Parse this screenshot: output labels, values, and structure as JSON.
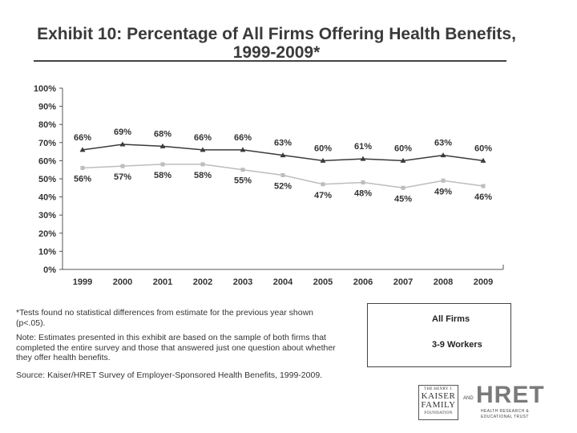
{
  "header": {
    "title_line1": "Exhibit 10: Percentage of All Firms Offering Health Benefits,",
    "title_line2": "1999-2009*"
  },
  "colors": {
    "all_firms": "#3a3a3a",
    "workers_3_9": "#bdbdbd",
    "axis": "#555555"
  },
  "chart_data": {
    "type": "line",
    "title": "Exhibit 10: Percentage of All Firms Offering Health Benefits, 1999-2009*",
    "xlabel": "",
    "ylabel": "",
    "categories": [
      "1999",
      "2000",
      "2001",
      "2002",
      "2003",
      "2004",
      "2005",
      "2006",
      "2007",
      "2008",
      "2009"
    ],
    "ylim": [
      0,
      100
    ],
    "yticks": [
      0,
      10,
      20,
      30,
      40,
      50,
      60,
      70,
      80,
      90,
      100
    ],
    "ytick_labels": [
      "0%",
      "10%",
      "20%",
      "30%",
      "40%",
      "50%",
      "60%",
      "70%",
      "80%",
      "90%",
      "100%"
    ],
    "series": [
      {
        "name": "All Firms",
        "marker": "triangle",
        "values": [
          66,
          69,
          68,
          66,
          66,
          63,
          60,
          61,
          60,
          63,
          60
        ],
        "labels": [
          "66%",
          "69%",
          "68%",
          "66%",
          "66%",
          "63%",
          "60%",
          "61%",
          "60%",
          "63%",
          "60%"
        ]
      },
      {
        "name": "3-9 Workers",
        "marker": "square",
        "values": [
          56,
          57,
          58,
          58,
          55,
          52,
          47,
          48,
          45,
          49,
          46
        ],
        "labels": [
          "56%",
          "57%",
          "58%",
          "58%",
          "55%",
          "52%",
          "47%",
          "48%",
          "45%",
          "49%",
          "46%"
        ]
      }
    ],
    "legend": {
      "position": "bottom-right",
      "entries": [
        "All Firms",
        "3-9 Workers"
      ]
    }
  },
  "notes": {
    "footnote": "*Tests found no statistical differences from estimate for the previous year shown (p<.05).",
    "note": "Note: Estimates presented in this exhibit are based on the sample of both firms that completed the entire survey and those that answered just one question about whether they offer health benefits.",
    "source": "Source: Kaiser/HRET Survey of Employer-Sponsored Health Benefits, 1999-2009."
  },
  "logos": {
    "kff_line1": "THE HENRY J.",
    "kff_line2": "KAISER",
    "kff_line3": "FAMILY",
    "kff_line4": "FOUNDATION",
    "and": "AND",
    "hret": "HRET",
    "hret_sub1": "HEALTH RESEARCH &",
    "hret_sub2": "EDUCATIONAL TRUST"
  }
}
